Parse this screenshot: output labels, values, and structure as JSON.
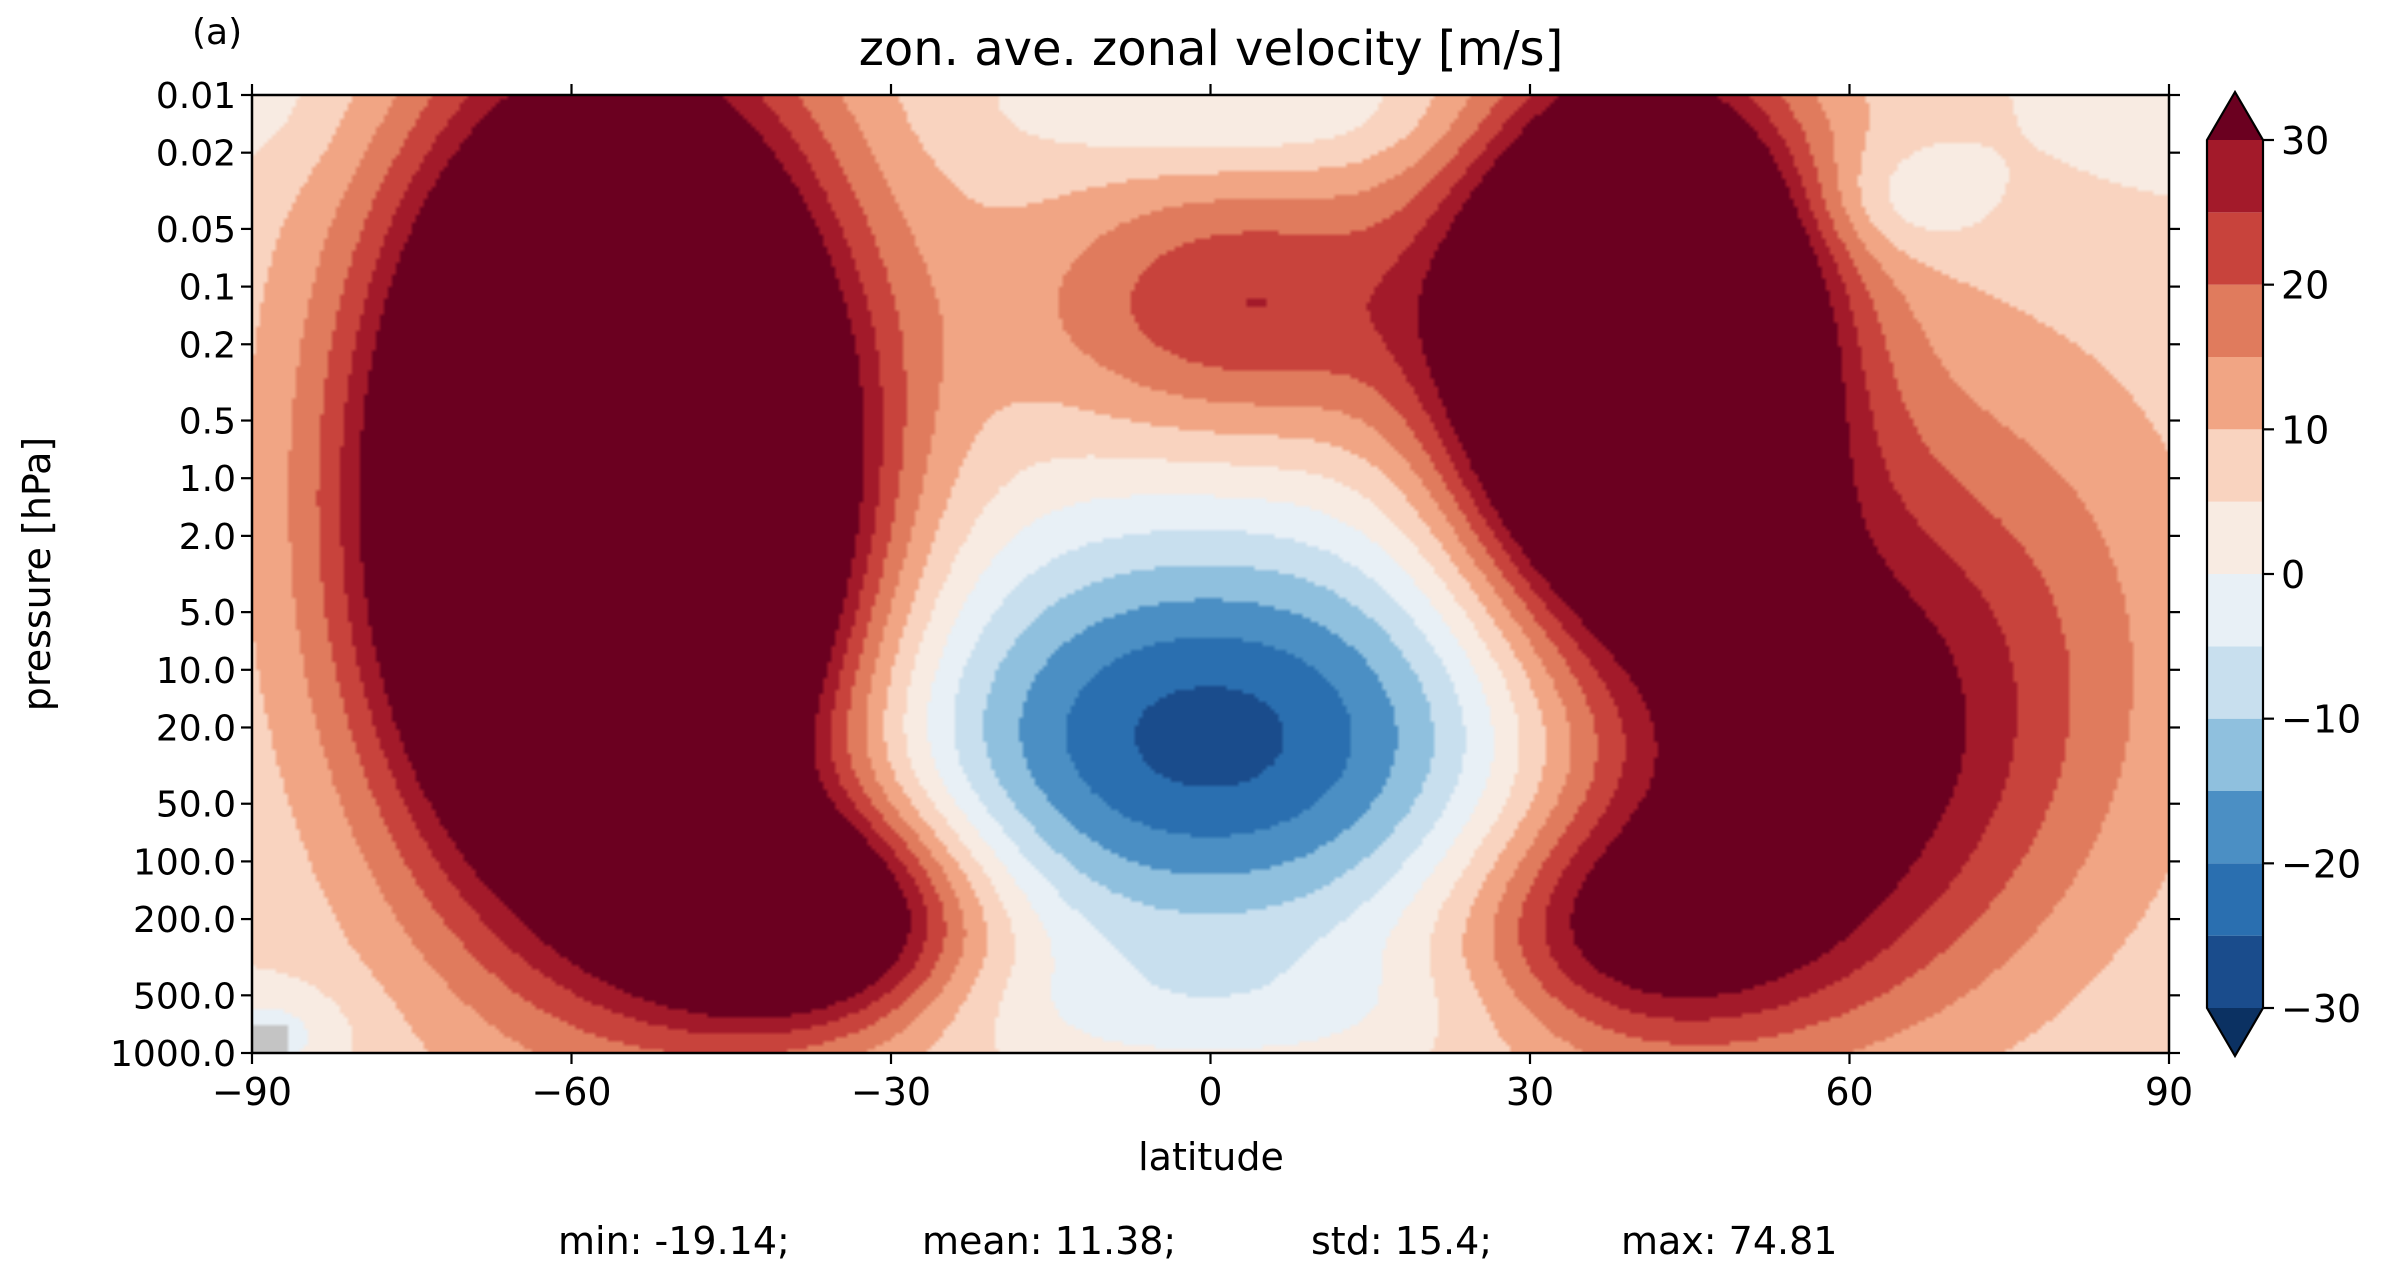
{
  "panel_label": "(a)",
  "stats": {
    "min": "min: -19.14;",
    "mean": "mean: 11.38;",
    "std": "std: 15.4;",
    "max": "max: 74.81"
  },
  "chart_data": {
    "type": "heatmap",
    "subtype": "filled-contour",
    "title": "zon. ave. zonal velocity [m/s]",
    "xlabel": "latitude",
    "ylabel": "pressure [hPa]",
    "xlim": [
      -90,
      90
    ],
    "xticks": [
      -90,
      -60,
      -30,
      0,
      30,
      60,
      90
    ],
    "xtick_labels": [
      "−90",
      "−60",
      "−30",
      "0",
      "30",
      "60",
      "90"
    ],
    "yscale": "log",
    "ylim": [
      1000,
      0.01
    ],
    "yticks": [
      0.01,
      0.02,
      0.05,
      0.1,
      0.2,
      0.5,
      1.0,
      2.0,
      5.0,
      10.0,
      20.0,
      50.0,
      100.0,
      200.0,
      500.0,
      1000.0
    ],
    "ytick_labels": [
      "0.01",
      "0.02",
      "0.05",
      "0.1",
      "0.2",
      "0.5",
      "1.0",
      "2.0",
      "5.0",
      "10.0",
      "20.0",
      "50.0",
      "100.0",
      "200.0",
      "500.0",
      "1000.0"
    ],
    "colorbar": {
      "levels": [
        -30,
        -25,
        -20,
        -15,
        -10,
        -5,
        0,
        5,
        10,
        15,
        20,
        25,
        30
      ],
      "tick_values": [
        -30,
        -20,
        -10,
        0,
        10,
        20,
        30
      ],
      "tick_labels": [
        "−30",
        "−20",
        "−10",
        "0",
        "10",
        "20",
        "30"
      ],
      "extend": "both",
      "colormap": "RdBu_r",
      "colors": [
        "#1a4c8c",
        "#2a6fb0",
        "#4b8fc4",
        "#8fc0de",
        "#c8dfee",
        "#e8f0f6",
        "#f8ebe2",
        "#f9d3bf",
        "#f1a584",
        "#e07b5d",
        "#c8433c",
        "#a31a2a",
        "#6b0020"
      ],
      "under_color": "#0b3162",
      "over_color": "#6b0020",
      "missing_color": "#c4c4c4"
    },
    "jets": [
      {
        "lat": -52,
        "log10p": -0.1,
        "value": 74.81
      },
      {
        "lat": -38,
        "log10p": 2.3,
        "value": 31
      },
      {
        "lat": 38,
        "log10p": -0.7,
        "value": 55
      },
      {
        "lat": 52,
        "log10p": 1.75,
        "value": 24
      },
      {
        "lat": 0,
        "log10p": 1.65,
        "value": -19.14
      }
    ],
    "stats": {
      "min": -19.14,
      "mean": 11.38,
      "std": 15.4,
      "max": 74.81
    }
  }
}
